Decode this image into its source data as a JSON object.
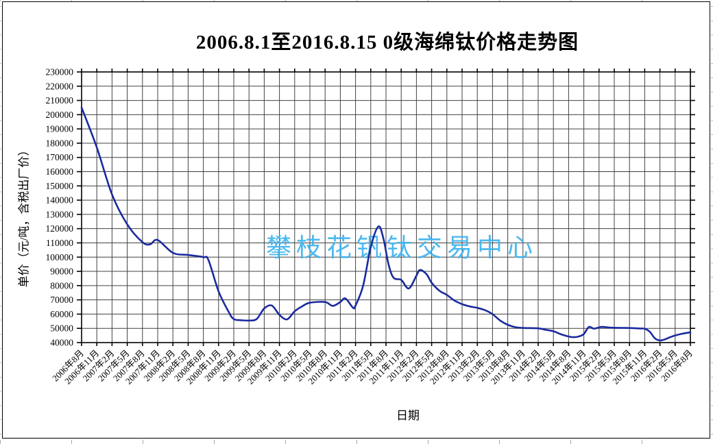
{
  "header": {
    "title": "2006.8.1至2016.8.15  0级海绵钛价格走势图"
  },
  "watermark": {
    "text": "攀枝花钒钛交易中心",
    "color": "#3db4f0"
  },
  "chart_data": {
    "type": "line",
    "title": "2006.8.1至2016.8.15  0级海绵钛价格走势图",
    "xlabel": "日期",
    "ylabel": "单价（元/吨，含税出厂价）",
    "ylim": [
      40000,
      230000
    ],
    "y_tick_step": 10000,
    "y_tick_labels": [
      "230000",
      "220000",
      "210000",
      "200000",
      "190000",
      "180000",
      "170000",
      "160000",
      "150000",
      "140000",
      "130000",
      "120000",
      "110000",
      "100000",
      "90000",
      "80000",
      "70000",
      "60000",
      "50000",
      "40000"
    ],
    "x_tick_labels": [
      "2006年8月",
      "2006年11月",
      "2007年2月",
      "2007年5月",
      "2007年8月",
      "2007年11月",
      "2008年2月",
      "2008年5月",
      "2008年8月",
      "2008年11月",
      "2009年2月",
      "2009年5月",
      "2009年8月",
      "2009年11月",
      "2010年2月",
      "2010年5月",
      "2010年8月",
      "2010年11月",
      "2011年2月",
      "2011年5月",
      "2011年8月",
      "2011年11月",
      "2012年2月",
      "2012年5月",
      "2012年8月",
      "2012年11月",
      "2013年2月",
      "2013年5月",
      "2013年8月",
      "2013年11月",
      "2014年2月",
      "2014年5月",
      "2014年8月",
      "2014年11月",
      "2015年2月",
      "2015年5月",
      "2015年8月",
      "2015年11月",
      "2016年2月",
      "2016年5月",
      "2016年8月"
    ],
    "x_tick_interval_months": 3,
    "x_range_months": 120,
    "grid": true,
    "legend": false,
    "grid_color": "#404040",
    "line_color": "#1a2a9e",
    "series": {
      "x_unit": "months since 2006-08",
      "points": [
        [
          0,
          205000
        ],
        [
          3,
          177000
        ],
        [
          6,
          144000
        ],
        [
          9,
          123000
        ],
        [
          12,
          110500
        ],
        [
          13.5,
          109000
        ],
        [
          15,
          112000
        ],
        [
          18,
          103000
        ],
        [
          21,
          101500
        ],
        [
          24,
          100000
        ],
        [
          25,
          98000
        ],
        [
          27,
          76000
        ],
        [
          29,
          61500
        ],
        [
          30,
          56500
        ],
        [
          31.5,
          55700
        ],
        [
          33,
          55500
        ],
        [
          34.5,
          56500
        ],
        [
          36,
          64000
        ],
        [
          37.5,
          66000
        ],
        [
          39,
          59500
        ],
        [
          40.5,
          56300
        ],
        [
          42,
          62000
        ],
        [
          43.5,
          65500
        ],
        [
          45,
          68000
        ],
        [
          48,
          68500
        ],
        [
          49.5,
          65800
        ],
        [
          51,
          68500
        ],
        [
          52,
          71000
        ],
        [
          53.5,
          64500
        ],
        [
          54,
          66000
        ],
        [
          55.5,
          80000
        ],
        [
          57,
          107000
        ],
        [
          58.5,
          121500
        ],
        [
          59.5,
          113000
        ],
        [
          60.5,
          95000
        ],
        [
          61.5,
          85500
        ],
        [
          63,
          84000
        ],
        [
          64.5,
          78000
        ],
        [
          66,
          87000
        ],
        [
          66.7,
          91000
        ],
        [
          68,
          88000
        ],
        [
          69,
          82000
        ],
        [
          70.5,
          76500
        ],
        [
          72,
          73500
        ],
        [
          73.5,
          69500
        ],
        [
          75,
          67000
        ],
        [
          76.5,
          65400
        ],
        [
          78,
          64400
        ],
        [
          79.5,
          62800
        ],
        [
          81,
          60000
        ],
        [
          82.5,
          55500
        ],
        [
          84,
          52500
        ],
        [
          85.5,
          50800
        ],
        [
          87,
          50300
        ],
        [
          90,
          50000
        ],
        [
          91.5,
          49000
        ],
        [
          93,
          48000
        ],
        [
          94.5,
          45800
        ],
        [
          96,
          44300
        ],
        [
          97,
          43800
        ],
        [
          98,
          44300
        ],
        [
          99,
          46000
        ],
        [
          100,
          51000
        ],
        [
          101,
          49800
        ],
        [
          102.5,
          51000
        ],
        [
          104,
          50600
        ],
        [
          105.5,
          50400
        ],
        [
          107,
          50300
        ],
        [
          108.5,
          50200
        ],
        [
          110,
          49900
        ],
        [
          111,
          49700
        ],
        [
          112,
          47600
        ],
        [
          113,
          43000
        ],
        [
          114,
          41500
        ],
        [
          115,
          42300
        ],
        [
          116,
          43800
        ],
        [
          117,
          45000
        ],
        [
          118.5,
          46300
        ],
        [
          120,
          47200
        ]
      ]
    }
  }
}
